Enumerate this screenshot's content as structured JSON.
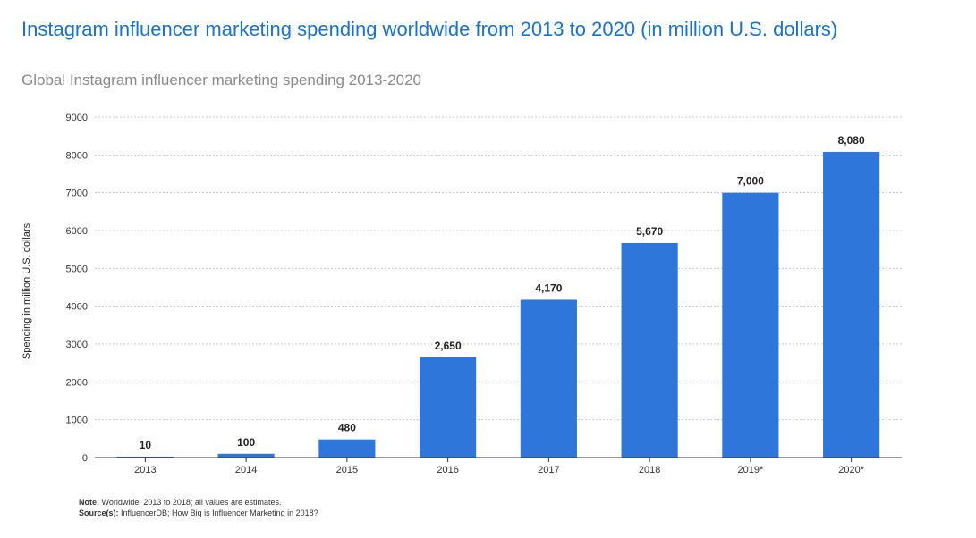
{
  "title": "Instagram influencer marketing spending worldwide from 2013 to 2020 (in million U.S. dollars)",
  "subtitle": "Global Instagram influencer marketing spending 2013-2020",
  "note_label": "Note:",
  "note_text": "Worldwide; 2013 to 2018; all values are estimates.",
  "source_label": "Source(s):",
  "source_text": "InfluencerDB; How Big is Influencer Marketing in 2018?",
  "colors": {
    "bar": "#2e76d9",
    "grid": "#c8c8c8",
    "axis": "#333333"
  },
  "chart_data": {
    "type": "bar",
    "title": "Instagram influencer marketing spending worldwide from 2013 to 2020 (in million U.S. dollars)",
    "xlabel": "",
    "ylabel": "Spending in million U.S. dollars",
    "categories": [
      "2013",
      "2014",
      "2015",
      "2016",
      "2017",
      "2018",
      "2019*",
      "2020*"
    ],
    "values": [
      10,
      100,
      480,
      2650,
      4170,
      5670,
      7000,
      8080
    ],
    "value_labels": [
      "10",
      "100",
      "480",
      "2,650",
      "4,170",
      "5,670",
      "7,000",
      "8,080"
    ],
    "ylim": [
      0,
      9000
    ],
    "yticks": [
      0,
      1000,
      2000,
      3000,
      4000,
      5000,
      6000,
      7000,
      8000,
      9000
    ],
    "grid": true,
    "legend": "none"
  }
}
